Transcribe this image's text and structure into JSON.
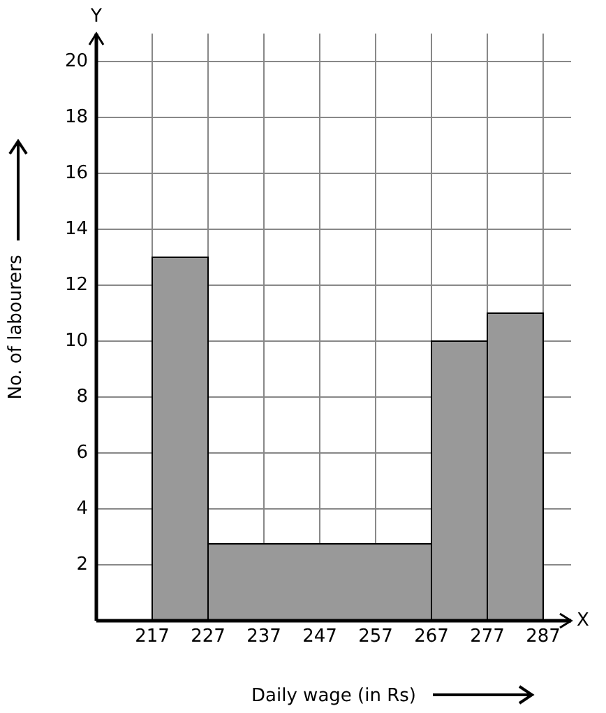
{
  "chart_data": {
    "type": "histogram",
    "xlabel": "Daily wage (in Rs)",
    "ylabel": "No. of labourers",
    "bins": [
      217,
      227,
      267,
      277,
      287
    ],
    "values": [
      13,
      2.75,
      10,
      11
    ],
    "color": "#999999",
    "xlim": [
      207,
      292
    ],
    "ylim": [
      0,
      21
    ],
    "xticks": [
      217,
      227,
      237,
      247,
      257,
      267,
      277,
      287
    ],
    "yticks": [
      2,
      4,
      6,
      8,
      10,
      12,
      14,
      16,
      18,
      20
    ],
    "annotations": [
      "Y",
      "X"
    ],
    "grid": true
  }
}
